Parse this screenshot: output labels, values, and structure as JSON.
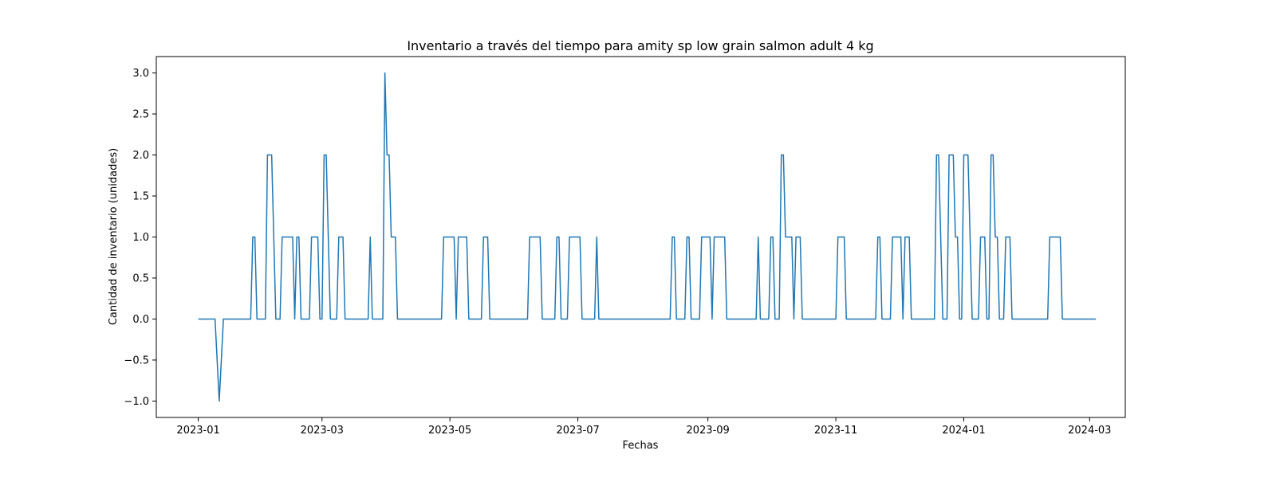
{
  "chart_data": {
    "type": "line",
    "title": "Inventario a través del tiempo para amity sp low grain salmon adult 4 kg",
    "xlabel": "Fechas",
    "ylabel": "Cantidad de inventario (unidades)",
    "xlim": [
      "2022-12-12",
      "2024-03-18"
    ],
    "ylim": [
      -1.2,
      3.2
    ],
    "grid": false,
    "legend": "none",
    "x_ticks": [
      "2023-01",
      "2023-03",
      "2023-05",
      "2023-07",
      "2023-09",
      "2023-11",
      "2024-01",
      "2024-03"
    ],
    "y_ticks": [
      -1.0,
      -0.5,
      0.0,
      0.5,
      1.0,
      1.5,
      2.0,
      2.5,
      3.0
    ],
    "y_tick_labels": [
      "−1.0",
      "−0.5",
      "0.0",
      "0.5",
      "1.0",
      "1.5",
      "2.0",
      "2.5",
      "3.0"
    ],
    "series": [
      {
        "color": "#1f77b4",
        "points": [
          [
            "2023-01-01",
            0
          ],
          [
            "2023-01-09",
            0
          ],
          [
            "2023-01-11",
            -1
          ],
          [
            "2023-01-13",
            0
          ],
          [
            "2023-01-26",
            0
          ],
          [
            "2023-01-27",
            1
          ],
          [
            "2023-01-28",
            1
          ],
          [
            "2023-01-29",
            0
          ],
          [
            "2023-02-02",
            0
          ],
          [
            "2023-02-03",
            2
          ],
          [
            "2023-02-05",
            2
          ],
          [
            "2023-02-07",
            0
          ],
          [
            "2023-02-09",
            0
          ],
          [
            "2023-02-10",
            1
          ],
          [
            "2023-02-15",
            1
          ],
          [
            "2023-02-16",
            0
          ],
          [
            "2023-02-17",
            1
          ],
          [
            "2023-02-18",
            1
          ],
          [
            "2023-02-19",
            0
          ],
          [
            "2023-02-23",
            0
          ],
          [
            "2023-02-24",
            1
          ],
          [
            "2023-02-27",
            1
          ],
          [
            "2023-02-28",
            0
          ],
          [
            "2023-03-01",
            0
          ],
          [
            "2023-03-02",
            2
          ],
          [
            "2023-03-03",
            2
          ],
          [
            "2023-03-05",
            0
          ],
          [
            "2023-03-08",
            0
          ],
          [
            "2023-03-09",
            1
          ],
          [
            "2023-03-11",
            1
          ],
          [
            "2023-03-12",
            0
          ],
          [
            "2023-03-23",
            0
          ],
          [
            "2023-03-24",
            1
          ],
          [
            "2023-03-25",
            0
          ],
          [
            "2023-03-30",
            0
          ],
          [
            "2023-03-31",
            3
          ],
          [
            "2023-04-01",
            2
          ],
          [
            "2023-04-02",
            2
          ],
          [
            "2023-04-03",
            1
          ],
          [
            "2023-04-05",
            1
          ],
          [
            "2023-04-06",
            0
          ],
          [
            "2023-04-27",
            0
          ],
          [
            "2023-04-28",
            1
          ],
          [
            "2023-05-03",
            1
          ],
          [
            "2023-05-04",
            0
          ],
          [
            "2023-05-05",
            1
          ],
          [
            "2023-05-09",
            1
          ],
          [
            "2023-05-10",
            0
          ],
          [
            "2023-05-16",
            0
          ],
          [
            "2023-05-17",
            1
          ],
          [
            "2023-05-19",
            1
          ],
          [
            "2023-05-20",
            0
          ],
          [
            "2023-06-07",
            0
          ],
          [
            "2023-06-08",
            1
          ],
          [
            "2023-06-13",
            1
          ],
          [
            "2023-06-14",
            0
          ],
          [
            "2023-06-20",
            0
          ],
          [
            "2023-06-21",
            1
          ],
          [
            "2023-06-22",
            1
          ],
          [
            "2023-06-23",
            0
          ],
          [
            "2023-06-26",
            0
          ],
          [
            "2023-06-27",
            1
          ],
          [
            "2023-07-02",
            1
          ],
          [
            "2023-07-03",
            0
          ],
          [
            "2023-07-09",
            0
          ],
          [
            "2023-07-10",
            1
          ],
          [
            "2023-07-11",
            0
          ],
          [
            "2023-08-14",
            0
          ],
          [
            "2023-08-15",
            1
          ],
          [
            "2023-08-16",
            1
          ],
          [
            "2023-08-17",
            0
          ],
          [
            "2023-08-21",
            0
          ],
          [
            "2023-08-22",
            1
          ],
          [
            "2023-08-23",
            1
          ],
          [
            "2023-08-24",
            0
          ],
          [
            "2023-08-28",
            0
          ],
          [
            "2023-08-29",
            1
          ],
          [
            "2023-09-02",
            1
          ],
          [
            "2023-09-03",
            0
          ],
          [
            "2023-09-04",
            1
          ],
          [
            "2023-09-09",
            1
          ],
          [
            "2023-09-10",
            0
          ],
          [
            "2023-09-24",
            0
          ],
          [
            "2023-09-25",
            1
          ],
          [
            "2023-09-26",
            0
          ],
          [
            "2023-09-30",
            0
          ],
          [
            "2023-10-01",
            1
          ],
          [
            "2023-10-02",
            1
          ],
          [
            "2023-10-03",
            0
          ],
          [
            "2023-10-05",
            0
          ],
          [
            "2023-10-06",
            2
          ],
          [
            "2023-10-07",
            2
          ],
          [
            "2023-10-08",
            1
          ],
          [
            "2023-10-11",
            1
          ],
          [
            "2023-10-12",
            0
          ],
          [
            "2023-10-13",
            1
          ],
          [
            "2023-10-15",
            1
          ],
          [
            "2023-10-16",
            0
          ],
          [
            "2023-11-01",
            0
          ],
          [
            "2023-11-02",
            1
          ],
          [
            "2023-11-05",
            1
          ],
          [
            "2023-11-06",
            0
          ],
          [
            "2023-11-20",
            0
          ],
          [
            "2023-11-21",
            1
          ],
          [
            "2023-11-22",
            1
          ],
          [
            "2023-11-23",
            0
          ],
          [
            "2023-11-27",
            0
          ],
          [
            "2023-11-28",
            1
          ],
          [
            "2023-12-02",
            1
          ],
          [
            "2023-12-03",
            0
          ],
          [
            "2023-12-04",
            1
          ],
          [
            "2023-12-06",
            1
          ],
          [
            "2023-12-07",
            0
          ],
          [
            "2023-12-18",
            0
          ],
          [
            "2023-12-19",
            2
          ],
          [
            "2023-12-20",
            2
          ],
          [
            "2023-12-22",
            0
          ],
          [
            "2023-12-24",
            0
          ],
          [
            "2023-12-25",
            2
          ],
          [
            "2023-12-27",
            2
          ],
          [
            "2023-12-28",
            1
          ],
          [
            "2023-12-29",
            1
          ],
          [
            "2023-12-30",
            0
          ],
          [
            "2023-12-31",
            0
          ],
          [
            "2024-01-01",
            2
          ],
          [
            "2024-01-03",
            2
          ],
          [
            "2024-01-05",
            0
          ],
          [
            "2024-01-08",
            0
          ],
          [
            "2024-01-09",
            1
          ],
          [
            "2024-01-11",
            1
          ],
          [
            "2024-01-12",
            0
          ],
          [
            "2024-01-13",
            0
          ],
          [
            "2024-01-14",
            2
          ],
          [
            "2024-01-15",
            2
          ],
          [
            "2024-01-16",
            1
          ],
          [
            "2024-01-17",
            1
          ],
          [
            "2024-01-18",
            0
          ],
          [
            "2024-01-20",
            0
          ],
          [
            "2024-01-21",
            1
          ],
          [
            "2024-01-23",
            1
          ],
          [
            "2024-01-24",
            0
          ],
          [
            "2024-02-10",
            0
          ],
          [
            "2024-02-11",
            1
          ],
          [
            "2024-02-16",
            1
          ],
          [
            "2024-02-17",
            0
          ],
          [
            "2024-03-04",
            0
          ]
        ]
      }
    ]
  }
}
